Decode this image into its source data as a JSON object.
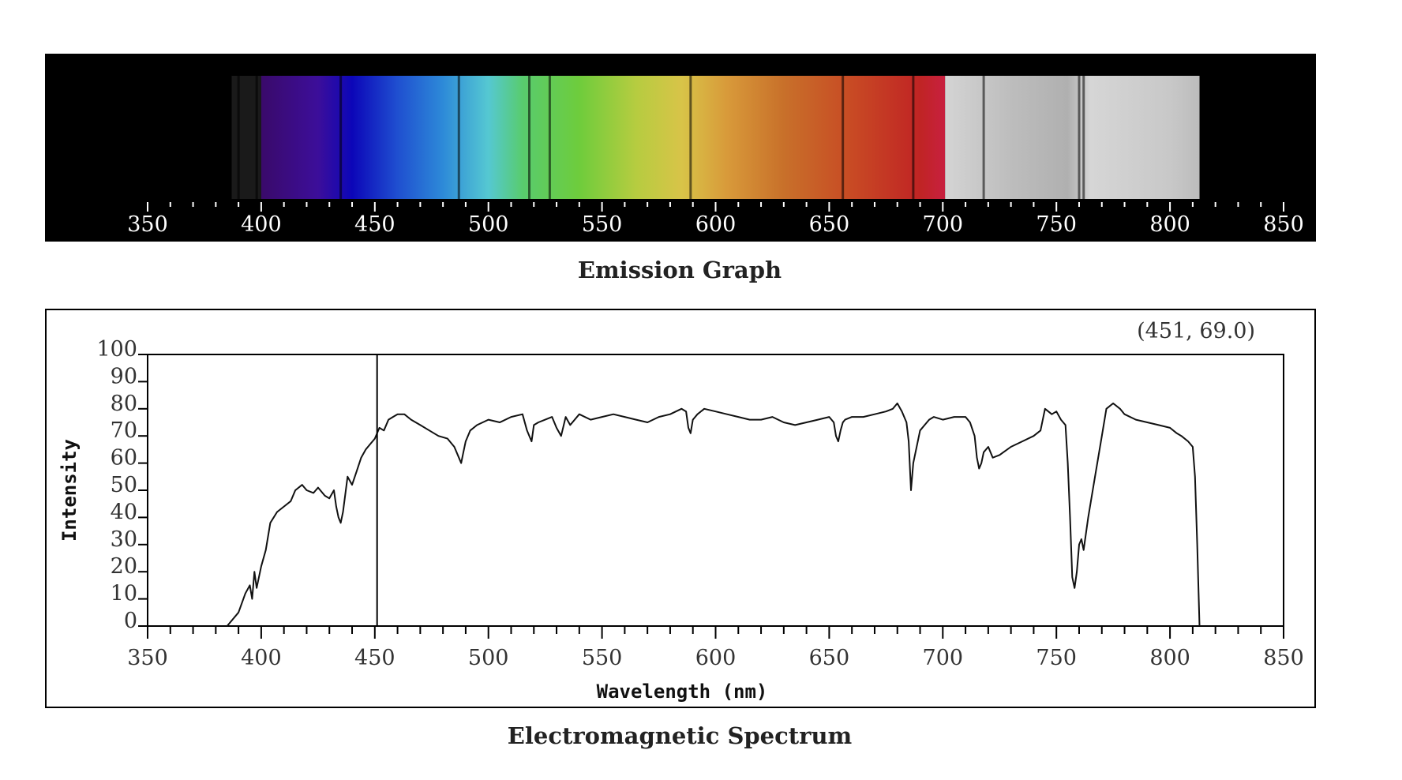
{
  "chart_data": [
    {
      "type": "spectrum-strip",
      "caption": "Emission Graph",
      "x_ticks": [
        350,
        400,
        450,
        500,
        550,
        600,
        650,
        700,
        750,
        800,
        850
      ],
      "xlim": [
        350,
        850
      ],
      "spectrum_range": [
        387,
        813
      ],
      "visible_range": [
        400,
        701
      ],
      "dark_lines": [
        390,
        398,
        435,
        487,
        518,
        527,
        589,
        656,
        687,
        718,
        760,
        762
      ]
    },
    {
      "type": "line",
      "caption": "Electromagnetic Spectrum",
      "xlabel": "Wavelength (nm)",
      "ylabel": "Intensity",
      "xlim": [
        350,
        850
      ],
      "ylim": [
        0,
        100
      ],
      "x_ticks": [
        350,
        400,
        450,
        500,
        550,
        600,
        650,
        700,
        750,
        800,
        850
      ],
      "y_ticks": [
        0,
        10,
        20,
        30,
        40,
        50,
        60,
        70,
        80,
        90,
        100
      ],
      "cursor": {
        "x": 451,
        "y": 69.0,
        "readout": "(451, 69.0)"
      },
      "series": [
        {
          "x": [
            385,
            390,
            393,
            395,
            396,
            397,
            398,
            399,
            400,
            402,
            404,
            407,
            410,
            413,
            415,
            418,
            420,
            423,
            425,
            428,
            430,
            432,
            433,
            434,
            435,
            436,
            438,
            440,
            442,
            444,
            446,
            448,
            450,
            452,
            454,
            456,
            458,
            460,
            463,
            466,
            470,
            474,
            478,
            482,
            485,
            487,
            488,
            489,
            490,
            492,
            495,
            500,
            505,
            510,
            515,
            517,
            518,
            519,
            520,
            522,
            525,
            528,
            530,
            532,
            534,
            536,
            540,
            545,
            550,
            555,
            560,
            565,
            570,
            575,
            580,
            585,
            587,
            588,
            589,
            590,
            592,
            595,
            600,
            605,
            610,
            615,
            620,
            625,
            630,
            635,
            640,
            645,
            650,
            652,
            653,
            654,
            655,
            656,
            657,
            660,
            665,
            670,
            675,
            678,
            680,
            682,
            684,
            685,
            686,
            687,
            690,
            692,
            694,
            696,
            700,
            705,
            710,
            712,
            714,
            715,
            716,
            717,
            718,
            720,
            722,
            725,
            730,
            735,
            740,
            743,
            745,
            748,
            750,
            752,
            754,
            755,
            756,
            757,
            758,
            759,
            760,
            761,
            762,
            764,
            767,
            770,
            772,
            775,
            778,
            780,
            785,
            790,
            795,
            800,
            803,
            805,
            808,
            810,
            811,
            812,
            813
          ],
          "y": [
            0,
            5,
            12,
            15,
            10,
            20,
            14,
            18,
            22,
            28,
            38,
            42,
            44,
            46,
            50,
            52,
            50,
            49,
            51,
            48,
            47,
            50,
            44,
            40,
            38,
            42,
            55,
            52,
            57,
            62,
            65,
            67,
            69,
            73,
            72,
            76,
            77,
            78,
            78,
            76,
            74,
            72,
            70,
            69,
            66,
            62,
            60,
            64,
            68,
            72,
            74,
            76,
            75,
            77,
            78,
            72,
            70,
            68,
            74,
            75,
            76,
            77,
            73,
            70,
            77,
            74,
            78,
            76,
            77,
            78,
            77,
            76,
            75,
            77,
            78,
            80,
            79,
            73,
            71,
            76,
            78,
            80,
            79,
            78,
            77,
            76,
            76,
            77,
            75,
            74,
            75,
            76,
            77,
            75,
            70,
            68,
            72,
            75,
            76,
            77,
            77,
            78,
            79,
            80,
            82,
            79,
            75,
            68,
            50,
            60,
            72,
            74,
            76,
            77,
            76,
            77,
            77,
            75,
            70,
            62,
            58,
            60,
            64,
            66,
            62,
            63,
            66,
            68,
            70,
            72,
            80,
            78,
            79,
            76,
            74,
            60,
            40,
            18,
            14,
            20,
            30,
            32,
            28,
            40,
            55,
            70,
            80,
            82,
            80,
            78,
            76,
            75,
            74,
            73,
            71,
            70,
            68,
            66,
            55,
            30,
            0
          ]
        }
      ]
    }
  ]
}
